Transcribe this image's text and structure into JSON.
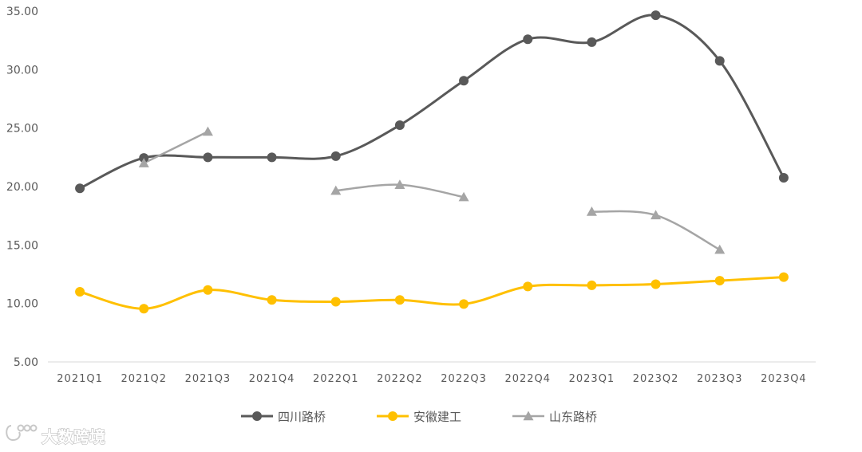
{
  "chart_data": {
    "type": "line",
    "categories": [
      "2021Q1",
      "2021Q2",
      "2021Q3",
      "2021Q4",
      "2022Q1",
      "2022Q2",
      "2022Q3",
      "2022Q4",
      "2023Q1",
      "2023Q2",
      "2023Q3",
      "2023Q4"
    ],
    "ylim": [
      5,
      35
    ],
    "yticks": [
      "5.00",
      "10.00",
      "15.00",
      "20.00",
      "25.00",
      "30.00",
      "35.00"
    ],
    "grid": false,
    "legend_position": "bottom",
    "series": [
      {
        "name": "四川路桥",
        "color": "#595959",
        "marker": "circle",
        "values": [
          19.85,
          22.45,
          22.5,
          22.5,
          22.6,
          25.25,
          29.05,
          32.6,
          32.35,
          34.65,
          30.75,
          20.75
        ]
      },
      {
        "name": "安徽建工",
        "color": "#FFC000",
        "marker": "circle",
        "values": [
          11.0,
          9.55,
          11.15,
          10.3,
          10.15,
          10.3,
          9.95,
          11.45,
          11.55,
          11.65,
          11.95,
          12.25
        ]
      },
      {
        "name": "山东路桥",
        "color": "#A5A5A5",
        "marker": "triangle",
        "values": [
          null,
          22.0,
          24.7,
          null,
          19.65,
          20.15,
          19.1,
          null,
          17.85,
          17.55,
          14.6,
          null
        ]
      }
    ]
  },
  "watermark": {
    "text": "大数跨境"
  }
}
